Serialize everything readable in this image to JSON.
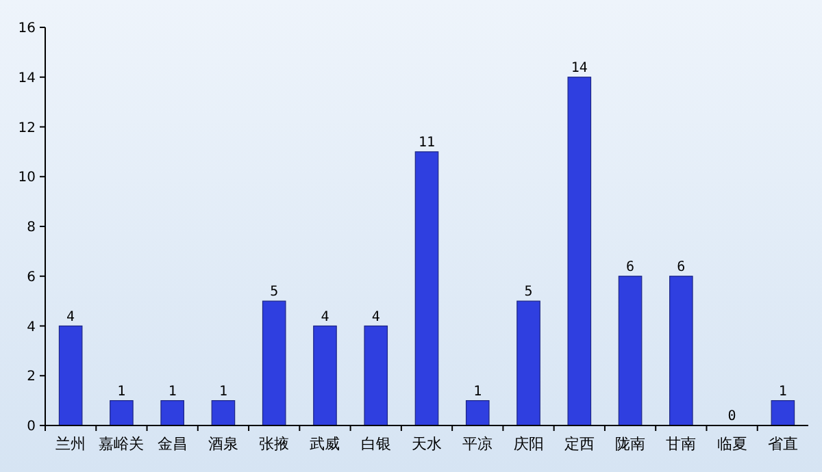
{
  "chart_data": {
    "type": "bar",
    "categories": [
      "兰州",
      "嘉峪关",
      "金昌",
      "酒泉",
      "张掖",
      "武威",
      "白银",
      "天水",
      "平凉",
      "庆阳",
      "定西",
      "陇南",
      "甘南",
      "临夏",
      "省直"
    ],
    "values": [
      4,
      1,
      1,
      1,
      5,
      4,
      4,
      11,
      1,
      5,
      14,
      6,
      6,
      0,
      1
    ],
    "color": "#2f3fe0",
    "ylim": [
      0,
      16
    ],
    "yticks": [
      0,
      2,
      4,
      6,
      8,
      10,
      12,
      14,
      16
    ],
    "data_labels": true
  }
}
